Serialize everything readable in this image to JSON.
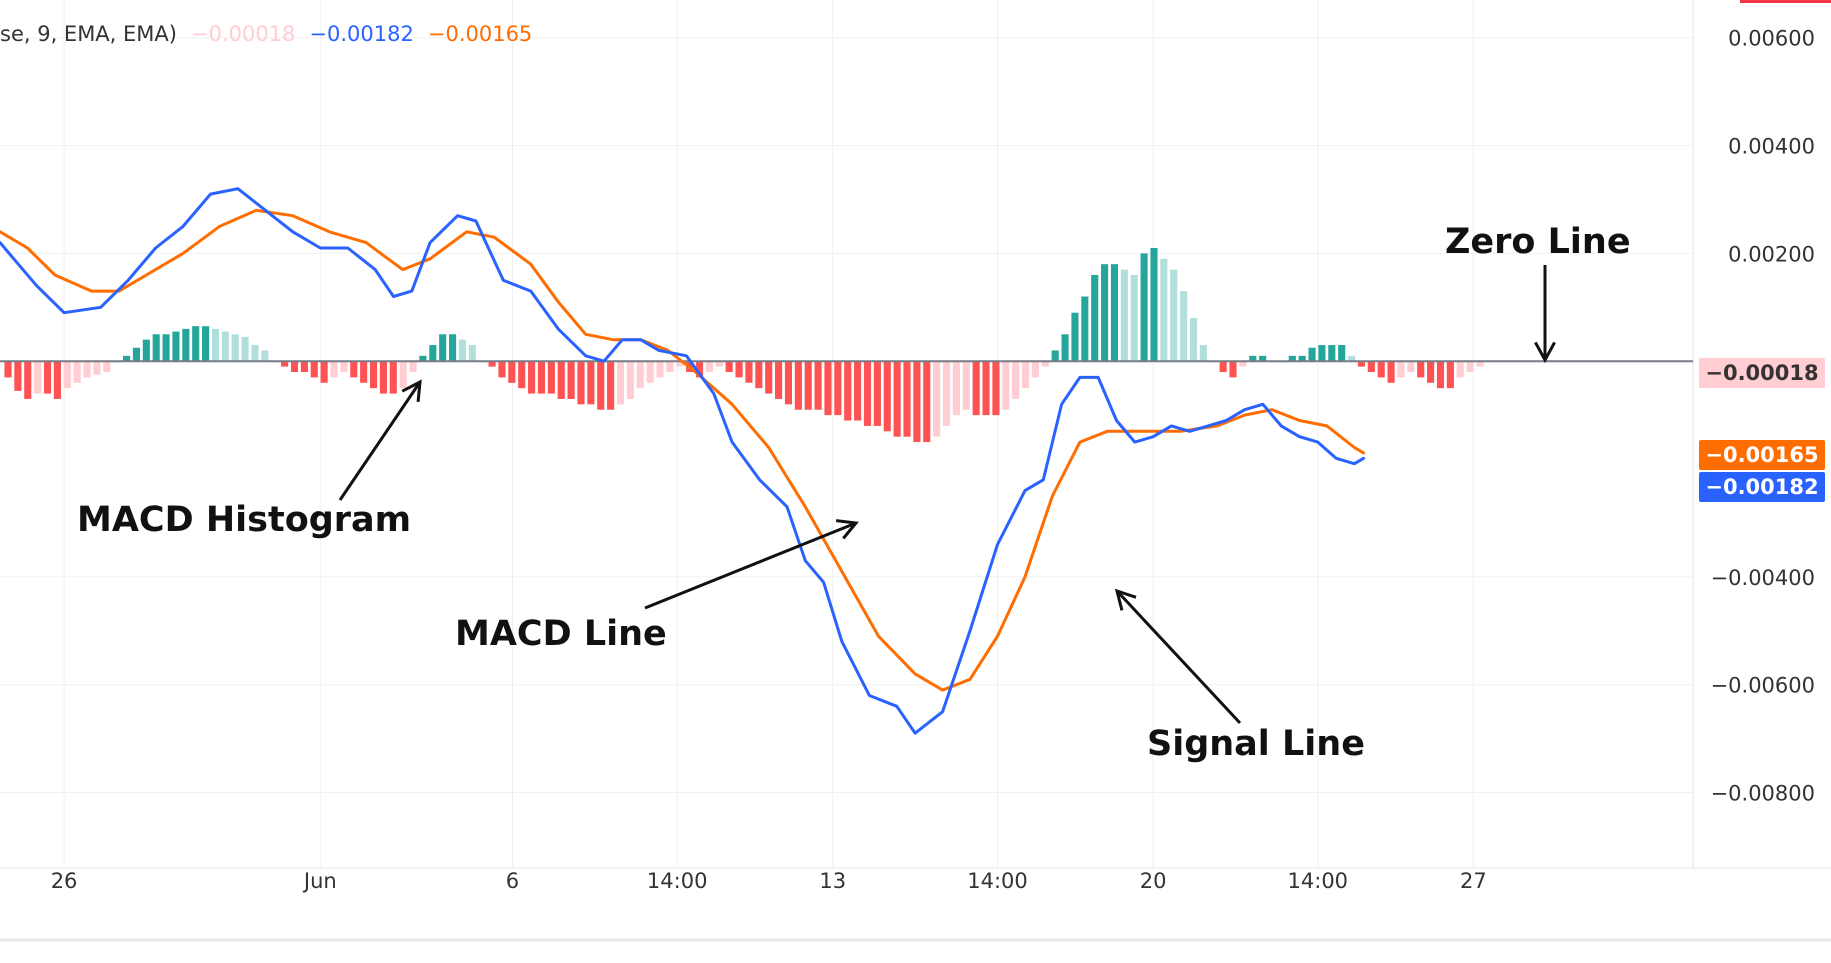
{
  "legend": {
    "prefix": "se, 9, EMA, EMA)",
    "histogram_value": "−0.00018",
    "macd_value": "−0.00182",
    "signal_value": "−0.00165"
  },
  "annotations": {
    "zero_line": "Zero Line",
    "histogram": "MACD Histogram",
    "macd_line": "MACD Line",
    "signal_line": "Signal Line"
  },
  "price_badges": {
    "histogram": "−0.00018",
    "signal": "−0.00165",
    "macd": "−0.00182"
  },
  "colors": {
    "macd": "#2962ff",
    "signal": "#ff6d00",
    "hist_pos_strong": "#26a69a",
    "hist_pos_weak": "#b2dfdb",
    "hist_neg_strong": "#ff5252",
    "hist_neg_weak": "#ffcdd2",
    "zero_line": "#787b86"
  },
  "chart_data": {
    "type": "line",
    "title": "",
    "xlabel": "",
    "ylabel": "",
    "ylim": [
      -0.0094,
      0.0067
    ],
    "grid": true,
    "y_ticks": [
      0.006,
      0.004,
      0.002,
      -0.004,
      -0.006,
      -0.008
    ],
    "y_tick_labels": [
      "0.00600",
      "0.00400",
      "0.00200",
      "−0.00400",
      "−0.00600",
      "−0.00800"
    ],
    "x_ticks": [
      {
        "i": 7,
        "label": "26"
      },
      {
        "i": 35,
        "label": "Jun"
      },
      {
        "i": 56,
        "label": "6"
      },
      {
        "i": 74,
        "label": "14:00"
      },
      {
        "i": 91,
        "label": "13"
      },
      {
        "i": 109,
        "label": "14:00"
      },
      {
        "i": 126,
        "label": "20"
      },
      {
        "i": 144,
        "label": "14:00"
      },
      {
        "i": 161,
        "label": "27"
      }
    ],
    "x_index_range": [
      0,
      185
    ],
    "series": [
      {
        "name": "MACD",
        "points": [
          [
            0,
            0.0022
          ],
          [
            2,
            0.0018
          ],
          [
            4,
            0.0014
          ],
          [
            7,
            0.0009
          ],
          [
            11,
            0.001
          ],
          [
            14,
            0.0015
          ],
          [
            17,
            0.0021
          ],
          [
            20,
            0.0025
          ],
          [
            23,
            0.0031
          ],
          [
            26,
            0.0032
          ],
          [
            29,
            0.0028
          ],
          [
            32,
            0.0024
          ],
          [
            35,
            0.0021
          ],
          [
            38,
            0.0021
          ],
          [
            41,
            0.0017
          ],
          [
            43,
            0.0012
          ],
          [
            45,
            0.0013
          ],
          [
            47,
            0.0022
          ],
          [
            50,
            0.0027
          ],
          [
            52,
            0.0026
          ],
          [
            55,
            0.0015
          ],
          [
            58,
            0.0013
          ],
          [
            61,
            0.0006
          ],
          [
            64,
            0.0001
          ],
          [
            66,
            0.0
          ],
          [
            68,
            0.0004
          ],
          [
            70,
            0.0004
          ],
          [
            72,
            0.0002
          ],
          [
            75,
            0.0001
          ],
          [
            78,
            -0.0006
          ],
          [
            80,
            -0.0015
          ],
          [
            83,
            -0.0022
          ],
          [
            86,
            -0.0027
          ],
          [
            88,
            -0.0037
          ],
          [
            90,
            -0.0041
          ],
          [
            92,
            -0.0052
          ],
          [
            95,
            -0.0062
          ],
          [
            98,
            -0.0064
          ],
          [
            100,
            -0.0069
          ],
          [
            103,
            -0.0065
          ],
          [
            106,
            -0.005
          ],
          [
            109,
            -0.0034
          ],
          [
            112,
            -0.0024
          ],
          [
            114,
            -0.0022
          ],
          [
            116,
            -0.0008
          ],
          [
            118,
            -0.0003
          ],
          [
            120,
            -0.0003
          ],
          [
            122,
            -0.0011
          ],
          [
            124,
            -0.0015
          ],
          [
            126,
            -0.0014
          ],
          [
            128,
            -0.0012
          ],
          [
            130,
            -0.0013
          ],
          [
            132,
            -0.0012
          ],
          [
            134,
            -0.0011
          ],
          [
            136,
            -0.0009
          ],
          [
            138,
            -0.0008
          ],
          [
            140,
            -0.0012
          ],
          [
            142,
            -0.0014
          ],
          [
            144,
            -0.0015
          ],
          [
            146,
            -0.0018
          ],
          [
            148,
            -0.0019
          ],
          [
            149,
            -0.0018
          ]
        ]
      },
      {
        "name": "Signal",
        "points": [
          [
            0,
            0.0024
          ],
          [
            3,
            0.0021
          ],
          [
            6,
            0.0016
          ],
          [
            10,
            0.0013
          ],
          [
            13,
            0.0013
          ],
          [
            16,
            0.0016
          ],
          [
            20,
            0.002
          ],
          [
            24,
            0.0025
          ],
          [
            28,
            0.0028
          ],
          [
            32,
            0.0027
          ],
          [
            36,
            0.0024
          ],
          [
            40,
            0.0022
          ],
          [
            44,
            0.0017
          ],
          [
            47,
            0.0019
          ],
          [
            51,
            0.0024
          ],
          [
            54,
            0.0023
          ],
          [
            58,
            0.0018
          ],
          [
            61,
            0.0011
          ],
          [
            64,
            0.0005
          ],
          [
            67,
            0.0004
          ],
          [
            70,
            0.0004
          ],
          [
            73,
            0.0002
          ],
          [
            76,
            -0.0002
          ],
          [
            80,
            -0.0008
          ],
          [
            84,
            -0.0016
          ],
          [
            88,
            -0.0027
          ],
          [
            92,
            -0.0039
          ],
          [
            96,
            -0.0051
          ],
          [
            100,
            -0.0058
          ],
          [
            103,
            -0.0061
          ],
          [
            106,
            -0.0059
          ],
          [
            109,
            -0.0051
          ],
          [
            112,
            -0.004
          ],
          [
            115,
            -0.0025
          ],
          [
            118,
            -0.0015
          ],
          [
            121,
            -0.0013
          ],
          [
            125,
            -0.0013
          ],
          [
            129,
            -0.0013
          ],
          [
            133,
            -0.0012
          ],
          [
            136,
            -0.001
          ],
          [
            139,
            -0.0009
          ],
          [
            142,
            -0.0011
          ],
          [
            145,
            -0.0012
          ],
          [
            148,
            -0.0016
          ],
          [
            149,
            -0.0017
          ]
        ]
      },
      {
        "name": "Histogram",
        "values": [
          -0.0003,
          -0.00055,
          -0.0007,
          -0.0006,
          -0.0006,
          -0.0007,
          -0.0005,
          -0.0004,
          -0.0003,
          -0.00025,
          -0.0002,
          0.0,
          0.0001,
          0.00025,
          0.0004,
          0.0005,
          0.0005,
          0.00055,
          0.0006,
          0.00065,
          0.00065,
          0.0006,
          0.00055,
          0.0005,
          0.00045,
          0.0003,
          0.0002,
          0.0,
          -0.0001,
          -0.0002,
          -0.0002,
          -0.0003,
          -0.0004,
          -0.0003,
          -0.0002,
          -0.0003,
          -0.0004,
          -0.0005,
          -0.0006,
          -0.0006,
          -0.0005,
          -0.0002,
          0.0001,
          0.0003,
          0.0005,
          0.0005,
          0.0004,
          0.0003,
          0.0,
          -0.0001,
          -0.0003,
          -0.0004,
          -0.0005,
          -0.0006,
          -0.0006,
          -0.0006,
          -0.0007,
          -0.0007,
          -0.0008,
          -0.0008,
          -0.0009,
          -0.0009,
          -0.0008,
          -0.0007,
          -0.0005,
          -0.0004,
          -0.0003,
          -0.0002,
          -0.0001,
          -0.0002,
          -0.0003,
          -0.0002,
          -0.0001,
          -0.0002,
          -0.0003,
          -0.0004,
          -0.0005,
          -0.0006,
          -0.0007,
          -0.0008,
          -0.0009,
          -0.0009,
          -0.0009,
          -0.001,
          -0.001,
          -0.0011,
          -0.0011,
          -0.0012,
          -0.0012,
          -0.0013,
          -0.0014,
          -0.0014,
          -0.0015,
          -0.0015,
          -0.0014,
          -0.0012,
          -0.001,
          -0.0009,
          -0.001,
          -0.001,
          -0.001,
          -0.0009,
          -0.0007,
          -0.0005,
          -0.0003,
          -0.0001,
          0.0002,
          0.0005,
          0.0009,
          0.0012,
          0.0016,
          0.0018,
          0.0018,
          0.0017,
          0.0016,
          0.002,
          0.0021,
          0.0019,
          0.0017,
          0.0013,
          0.0008,
          0.0003,
          0.0,
          -0.0002,
          -0.0003,
          -0.0001,
          0.0001,
          0.0001,
          0.0,
          0.0,
          0.0001,
          0.0001,
          0.00025,
          0.0003,
          0.0003,
          0.0003,
          0.0001,
          -0.0001,
          -0.0002,
          -0.0003,
          -0.0004,
          -0.0003,
          -0.0002,
          -0.0003,
          -0.0004,
          -0.0005,
          -0.0005,
          -0.0003,
          -0.0002,
          -0.0001
        ]
      }
    ]
  }
}
